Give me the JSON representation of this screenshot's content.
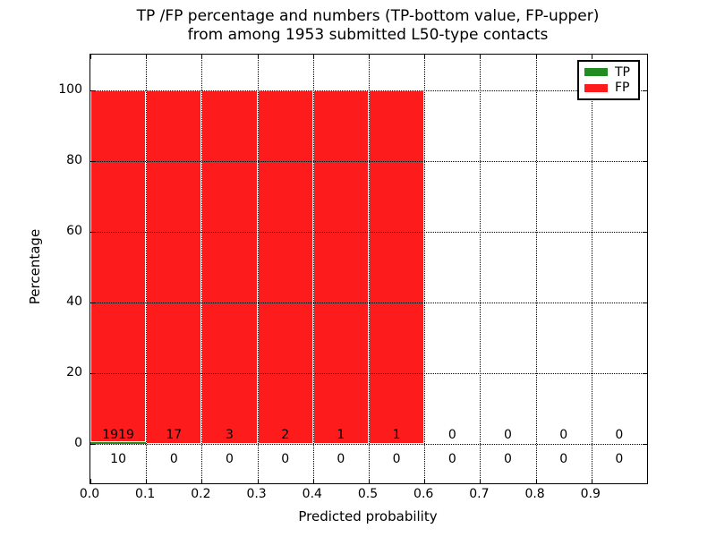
{
  "figure": {
    "title_line1": "TP /FP percentage and numbers (TP-bottom value, FP-upper)",
    "title_line2": "from among 1953 submitted L50-type contacts",
    "xlabel": "Predicted probability",
    "ylabel": "Percentage"
  },
  "legend": {
    "entries": [
      {
        "label": "TP",
        "color": "#228b22"
      },
      {
        "label": "FP",
        "color": "#fd1b1b"
      }
    ]
  },
  "chart_data": {
    "type": "bar",
    "stacked": true,
    "title": "TP /FP percentage and numbers (TP-bottom value, FP-upper) from among 1953 submitted L50-type contacts",
    "xlabel": "Predicted probability",
    "ylabel": "Percentage",
    "total_contacts": 1953,
    "xlim": [
      0.0,
      1.0
    ],
    "ylim": [
      -11,
      110
    ],
    "bin_width": 0.1,
    "bin_starts": [
      0.0,
      0.1,
      0.2,
      0.3,
      0.4,
      0.5,
      0.6,
      0.7,
      0.8,
      0.9
    ],
    "xtick_labels": [
      "0.0",
      "0.1",
      "0.2",
      "0.3",
      "0.4",
      "0.5",
      "0.6",
      "0.7",
      "0.8",
      "0.9"
    ],
    "ytick_values": [
      0,
      20,
      40,
      60,
      80,
      100
    ],
    "series": [
      {
        "name": "TP",
        "color": "#228b22",
        "counts": [
          10,
          0,
          0,
          0,
          0,
          0,
          0,
          0,
          0,
          0
        ]
      },
      {
        "name": "FP",
        "color": "#fd1b1b",
        "counts": [
          1919,
          17,
          3,
          2,
          1,
          1,
          0,
          0,
          0,
          0
        ]
      }
    ],
    "percent_series": [
      {
        "name": "TP",
        "values": [
          0.52,
          0,
          0,
          0,
          0,
          0,
          0,
          0,
          0,
          0
        ]
      },
      {
        "name": "FP",
        "values": [
          99.48,
          100,
          100,
          100,
          100,
          100,
          0,
          0,
          0,
          0
        ]
      }
    ],
    "legend_position": "upper right",
    "grid": "dotted"
  }
}
